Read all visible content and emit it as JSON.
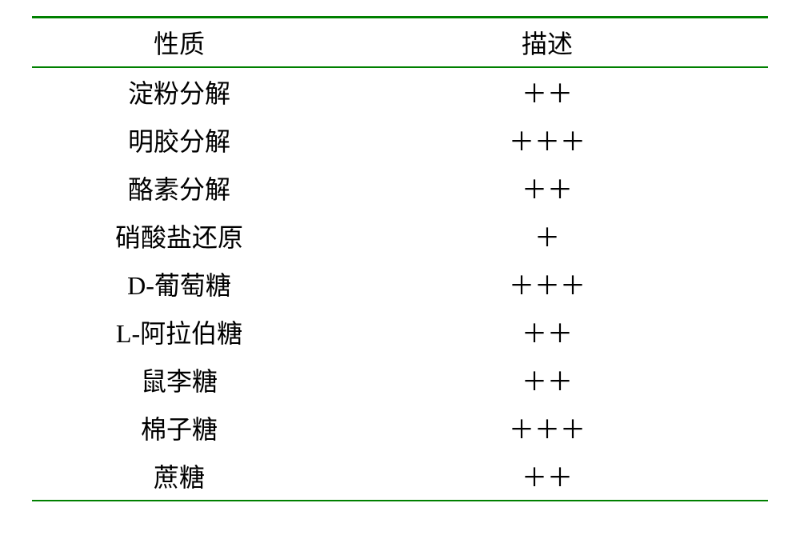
{
  "table": {
    "type": "table",
    "rule_color": "#008000",
    "background_color": "#ffffff",
    "text_color": "#000000",
    "font_family": "SimSun",
    "font_size_pt": 24,
    "columns": [
      {
        "key": "property",
        "label": "性质",
        "align": "center",
        "width_pct": 40
      },
      {
        "key": "description",
        "label": "描述",
        "align": "center",
        "width_pct": 60
      }
    ],
    "rows": [
      {
        "property": "淀粉分解",
        "description": "＋＋"
      },
      {
        "property": "明胶分解",
        "description": "＋＋＋"
      },
      {
        "property": "酪素分解",
        "description": "＋＋"
      },
      {
        "property": "硝酸盐还原",
        "description": "＋"
      },
      {
        "property": "D-葡萄糖",
        "description": "＋＋＋"
      },
      {
        "property": "L-阿拉伯糖",
        "description": "＋＋"
      },
      {
        "property": "鼠李糖",
        "description": "＋＋"
      },
      {
        "property": "棉子糖",
        "description": "＋＋＋"
      },
      {
        "property": "蔗糖",
        "description": "＋＋"
      }
    ]
  }
}
